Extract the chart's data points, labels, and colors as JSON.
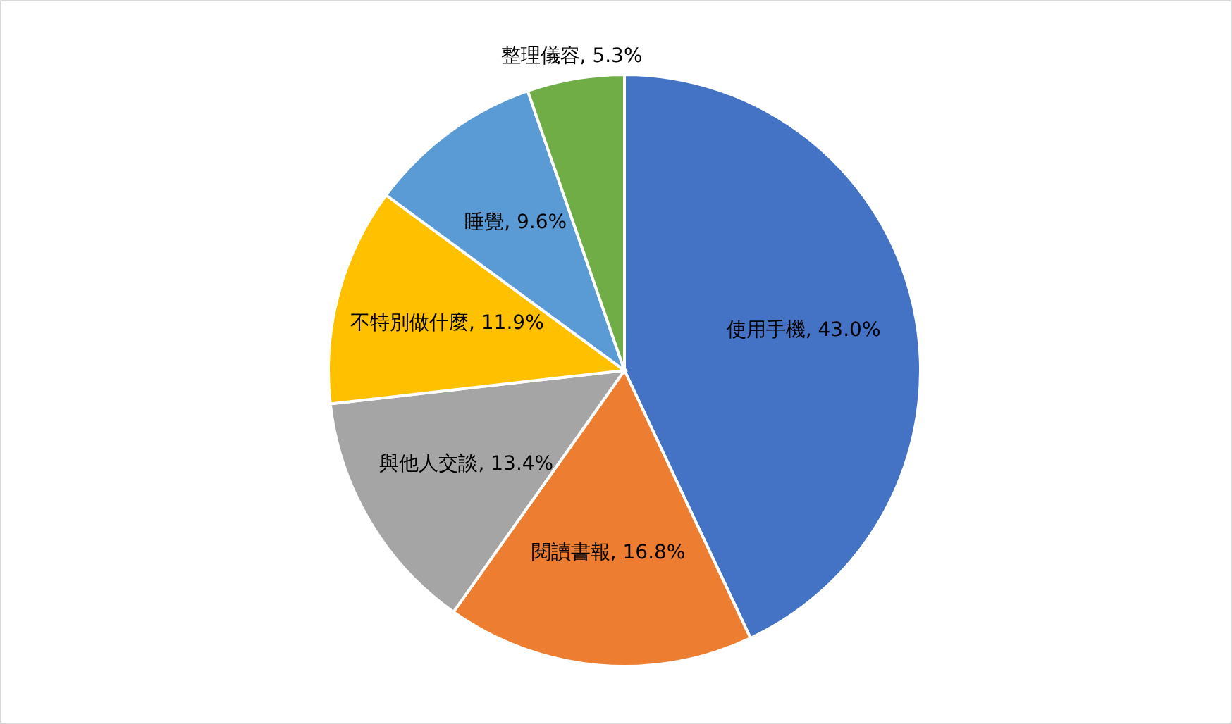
{
  "chart_data": {
    "type": "pie",
    "categories": [
      "使用手機",
      "閱讀書報",
      "與他人交談",
      "不特別做什麼",
      "睡覺",
      "整理儀容"
    ],
    "values": [
      43.0,
      16.8,
      13.4,
      11.9,
      9.6,
      5.3
    ],
    "colors": [
      "#4472c4",
      "#ed7d31",
      "#a5a5a5",
      "#ffc000",
      "#5b9bd5",
      "#70ad47"
    ],
    "value_labels": [
      ", 43.0%",
      ", 16.8%",
      ", 13.4%",
      ", 11.9%",
      ", 9.6%",
      ", 5.3%"
    ],
    "legend": false
  }
}
